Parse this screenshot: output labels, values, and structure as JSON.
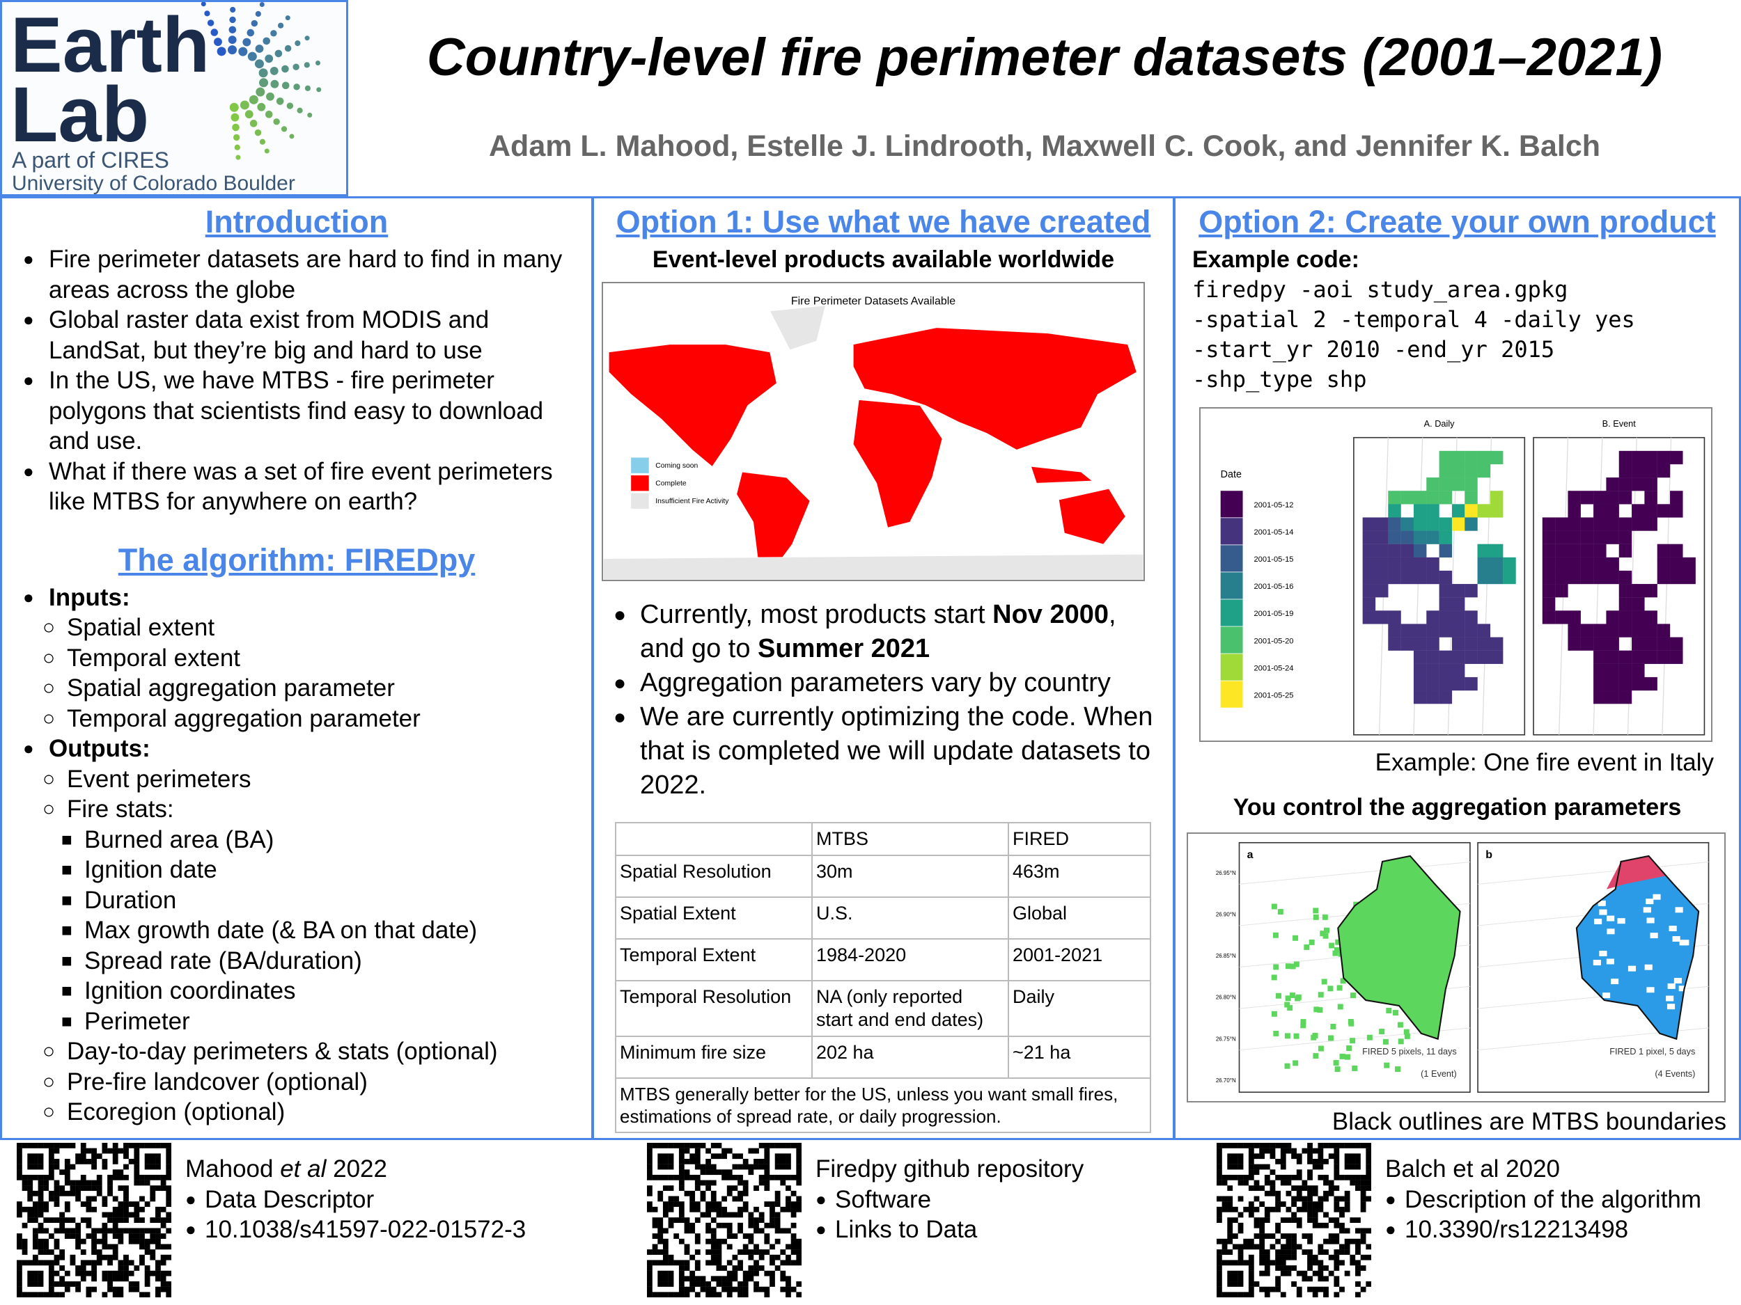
{
  "header": {
    "logo": {
      "line1": "Earth",
      "line2": "Lab",
      "line3": "A part of CIRES",
      "line4": "University of Colorado Boulder"
    },
    "title": "Country-level fire perimeter datasets (2001–2021)",
    "authors": "Adam L. Mahood, Estelle J. Lindrooth, Maxwell C. Cook, and Jennifer K. Balch"
  },
  "introduction": {
    "heading": "Introduction",
    "bullets": [
      "Fire perimeter datasets are hard to find in many areas across the globe",
      "Global raster data exist from MODIS and LandSat, but they’re big and hard to use",
      "In the US, we have MTBS - fire perimeter polygons that scientists find easy to download and use.",
      "What if there was a set of fire event perimeters like MTBS for anywhere on earth?"
    ]
  },
  "algorithm": {
    "heading": "The algorithm: FIREDpy",
    "items": [
      {
        "text": "Inputs:",
        "level": 0,
        "bold": true
      },
      {
        "text": "Spatial extent",
        "level": 1
      },
      {
        "text": "Temporal extent",
        "level": 1
      },
      {
        "text": "Spatial aggregation parameter",
        "level": 1
      },
      {
        "text": "Temporal aggregation parameter",
        "level": 1
      },
      {
        "text": "Outputs:",
        "level": 0,
        "bold": true
      },
      {
        "text": "Event perimeters",
        "level": 1
      },
      {
        "text": "Fire stats:",
        "level": 1
      },
      {
        "text": "Burned area (BA)",
        "level": 2
      },
      {
        "text": "Ignition date",
        "level": 2
      },
      {
        "text": "Duration",
        "level": 2
      },
      {
        "text": "Max growth date (& BA on that date)",
        "level": 2
      },
      {
        "text": "Spread rate (BA/duration)",
        "level": 2
      },
      {
        "text": "Ignition coordinates",
        "level": 2
      },
      {
        "text": "Perimeter",
        "level": 2
      },
      {
        "text": "Day-to-day perimeters & stats (optional)",
        "level": 1
      },
      {
        "text": "Pre-fire landcover (optional)",
        "level": 1
      },
      {
        "text": "Ecoregion (optional)",
        "level": 1
      }
    ]
  },
  "option1": {
    "heading": "Option 1: Use what we have created",
    "subheading": "Event-level products available worldwide",
    "map": {
      "title": "Fire Perimeter Datasets Available",
      "legend": [
        {
          "label": "Coming soon",
          "color": "#87ceeb"
        },
        {
          "label": "Complete",
          "color": "#ff0000"
        },
        {
          "label": "Insufficient Fire Activity",
          "color": "#e6e6e6"
        }
      ]
    },
    "bullets": [
      [
        {
          "text": "Currently, most products start "
        },
        {
          "text": "Nov 2000",
          "bold": true
        },
        {
          "text": ", and go to "
        },
        {
          "text": "Summer 2021",
          "bold": true
        }
      ],
      [
        {
          "text": "Aggregation parameters vary by country"
        }
      ],
      [
        {
          "text": "We are currently optimizing the code. When that is completed we will update datasets to 2022."
        }
      ]
    ],
    "table": {
      "columns": [
        "MTBS",
        "FIRED"
      ],
      "rows": [
        [
          "Spatial Resolution",
          "30m",
          "463m"
        ],
        [
          "Spatial Extent",
          "U.S.",
          "Global"
        ],
        [
          "Temporal Extent",
          "1984-2020",
          "2001-2021"
        ],
        [
          "Temporal Resolution",
          "NA (only reported start and end dates)",
          "Daily"
        ],
        [
          "Minimum fire size",
          "202 ha",
          "~21 ha"
        ]
      ],
      "note": "MTBS generally better for the US, unless you want small fires, estimations of spread rate, or daily progression."
    }
  },
  "option2": {
    "heading": "Option 2: Create your own product",
    "code_label": "Example code:",
    "code": [
      "firedpy -aoi study_area.gpkg",
      "-spatial 2 -temporal 4 -daily yes",
      "-start_yr 2010 -end_yr 2015",
      "-shp_type shp"
    ],
    "figure_italy": {
      "panels": [
        "A. Daily",
        "B. Event"
      ],
      "legend_title": "Date",
      "legend": [
        {
          "label": "2001-05-12",
          "color": "#440154"
        },
        {
          "label": "2001-05-14",
          "color": "#46337e"
        },
        {
          "label": "2001-05-15",
          "color": "#365c8d"
        },
        {
          "label": "2001-05-16",
          "color": "#277f8e"
        },
        {
          "label": "2001-05-19",
          "color": "#1fa187"
        },
        {
          "label": "2001-05-20",
          "color": "#4ac16d"
        },
        {
          "label": "2001-05-24",
          "color": "#a0da39"
        },
        {
          "label": "2001-05-25",
          "color": "#fde725"
        }
      ]
    },
    "caption": "Example: One fire event in Italy",
    "subheading": "You control the aggregation parameters",
    "figure_aggregation": {
      "lat_labels": [
        "26.95°N",
        "26.90°N",
        "26.85°N",
        "26.80°N",
        "26.75°N",
        "26.70°N"
      ],
      "panels": [
        {
          "tag": "a",
          "label": "FIRED 5 pixels, 11 days",
          "events": "(1 Event)",
          "color": "#5cd65c"
        },
        {
          "tag": "b",
          "label": "FIRED 1 pixel, 5 days",
          "events": "(4 Events)",
          "color": "#2b9be8"
        }
      ]
    },
    "caption2": "Black outlines are MTBS boundaries"
  },
  "footer": {
    "refs": [
      {
        "title": [
          {
            "text": "Mahood "
          },
          {
            "text": "et al",
            "italic": true
          },
          {
            "text": " 2022"
          }
        ],
        "bullets": [
          "Data Descriptor",
          "10.1038/s41597-022-01572-3"
        ]
      },
      {
        "title": [
          {
            "text": "Firedpy github repository"
          }
        ],
        "bullets": [
          "Software",
          "Links to Data"
        ]
      },
      {
        "title": [
          {
            "text": "Balch et al 2020"
          }
        ],
        "bullets": [
          "Description of the algorithm",
          "10.3390/rs12213498"
        ]
      }
    ]
  }
}
